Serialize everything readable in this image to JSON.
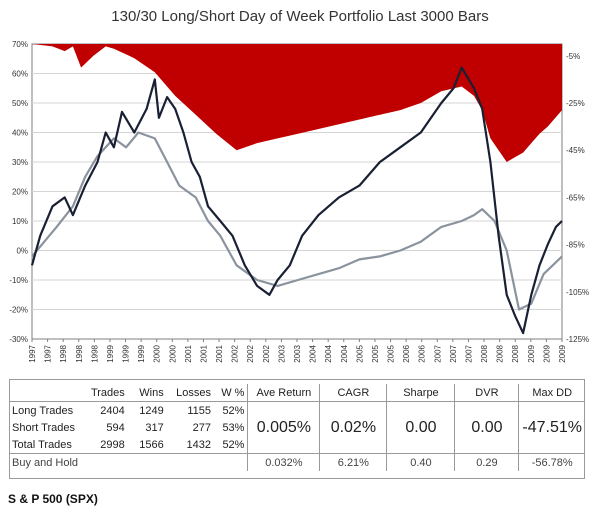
{
  "chart_data": {
    "type": "line",
    "title": "130/30 Long/Short Day of Week Portfolio Last 3000 Bars",
    "x_range": [
      1997.0,
      2009.95
    ],
    "x_tick_labels": [
      "1997",
      "1997",
      "1998",
      "1998",
      "1998",
      "1999",
      "1999",
      "1999",
      "2000",
      "2000",
      "2001",
      "2001",
      "2001",
      "2002",
      "2002",
      "2002",
      "2003",
      "2003",
      "2004",
      "2004",
      "2004",
      "2005",
      "2005",
      "2005",
      "2006",
      "2006",
      "2007",
      "2007",
      "2007",
      "2008",
      "2008",
      "2008",
      "2009",
      "2009",
      "2009"
    ],
    "y_left": {
      "ticks": [
        "70%",
        "60%",
        "50%",
        "40%",
        "30%",
        "20%",
        "10%",
        "0%",
        "-10%",
        "-20%",
        "-30%"
      ],
      "range": [
        -30,
        70
      ]
    },
    "y_right": {
      "ticks": [
        "-5%",
        "-25%",
        "-45%",
        "-65%",
        "-85%",
        "-105%",
        "-125%"
      ],
      "range": [
        -125,
        0
      ]
    },
    "series": [
      {
        "color": "#1a2033",
        "x": [
          1997.0,
          1997.2,
          1997.5,
          1997.8,
          1998.0,
          1998.3,
          1998.6,
          1998.8,
          1999.0,
          1999.2,
          1999.5,
          1999.8,
          2000.0,
          2000.1,
          2000.3,
          2000.5,
          2000.7,
          2000.9,
          2001.1,
          2001.3,
          2001.6,
          2001.9,
          2002.2,
          2002.5,
          2002.8,
          2003.0,
          2003.3,
          2003.6,
          2004.0,
          2004.5,
          2005.0,
          2005.5,
          2006.0,
          2006.5,
          2007.0,
          2007.3,
          2007.5,
          2007.8,
          2008.0,
          2008.2,
          2008.4,
          2008.6,
          2008.8,
          2009.0,
          2009.2,
          2009.4,
          2009.6,
          2009.8,
          2009.95
        ],
        "values": [
          -5,
          5,
          15,
          18,
          12,
          22,
          30,
          40,
          35,
          47,
          40,
          48,
          58,
          45,
          52,
          48,
          40,
          30,
          25,
          15,
          10,
          5,
          -5,
          -12,
          -15,
          -10,
          -5,
          5,
          12,
          18,
          22,
          30,
          35,
          40,
          50,
          55,
          62,
          55,
          48,
          30,
          5,
          -15,
          -22,
          -28,
          -15,
          -5,
          2,
          8,
          10
        ]
      },
      {
        "color": "#8a939e",
        "x": [
          1997.0,
          1997.3,
          1997.6,
          1998.0,
          1998.3,
          1998.6,
          1999.0,
          1999.3,
          1999.6,
          2000.0,
          2000.3,
          2000.6,
          2001.0,
          2001.3,
          2001.6,
          2002.0,
          2002.5,
          2003.0,
          2003.5,
          2004.0,
          2004.5,
          2005.0,
          2005.5,
          2006.0,
          2006.5,
          2007.0,
          2007.5,
          2007.8,
          2008.0,
          2008.3,
          2008.6,
          2008.9,
          2009.2,
          2009.5,
          2009.95
        ],
        "values": [
          -2,
          3,
          8,
          15,
          25,
          32,
          38,
          35,
          40,
          38,
          30,
          22,
          18,
          10,
          5,
          -5,
          -10,
          -12,
          -10,
          -8,
          -6,
          -3,
          -2,
          0,
          3,
          8,
          10,
          12,
          14,
          10,
          0,
          -20,
          -18,
          -8,
          -2
        ]
      }
    ],
    "drawdown_area": {
      "color": "#c00000",
      "axis": "right",
      "x": [
        1997.0,
        1997.5,
        1997.8,
        1998.0,
        1998.2,
        1998.5,
        1998.8,
        1999.0,
        1999.5,
        2000.0,
        2000.5,
        2001.0,
        2001.5,
        2002.0,
        2002.5,
        2003.0,
        2003.5,
        2004.0,
        2004.5,
        2005.0,
        2005.5,
        2006.0,
        2006.5,
        2007.0,
        2007.5,
        2007.8,
        2008.0,
        2008.2,
        2008.4,
        2008.6,
        2008.8,
        2009.0,
        2009.2,
        2009.4,
        2009.6,
        2009.95
      ],
      "values": [
        0,
        -1,
        -3,
        -1,
        -10,
        -5,
        -1,
        -2,
        -6,
        -12,
        -22,
        -30,
        -38,
        -45,
        -42,
        -40,
        -38,
        -36,
        -34,
        -32,
        -30,
        -28,
        -25,
        -20,
        -18,
        -22,
        -28,
        -40,
        -45,
        -50,
        -48,
        -46,
        -42,
        -38,
        -35,
        -28
      ]
    }
  },
  "stats_table": {
    "headers": [
      "Trades",
      "Wins",
      "Losses",
      "W %",
      "Ave Return",
      "CAGR",
      "Sharpe",
      "DVR",
      "Max DD"
    ],
    "rows": [
      {
        "label": "Long Trades",
        "trades": "2404",
        "wins": "1249",
        "losses": "1155",
        "wpct": "52%"
      },
      {
        "label": "Short Trades",
        "trades": "594",
        "wins": "317",
        "losses": "277",
        "wpct": "53%"
      },
      {
        "label": "Total Trades",
        "trades": "2998",
        "wins": "1566",
        "losses": "1432",
        "wpct": "52%"
      }
    ],
    "portfolio": {
      "ave_return": "0.005%",
      "cagr": "0.02%",
      "sharpe": "0.00",
      "dvr": "0.00",
      "max_dd": "-47.51%"
    },
    "buy_hold": {
      "label": "Buy and Hold",
      "ave_return": "0.032%",
      "cagr": "6.21%",
      "sharpe": "0.40",
      "dvr": "0.29",
      "max_dd": "-56.78%"
    }
  },
  "footer": "S & P 500 (SPX)"
}
